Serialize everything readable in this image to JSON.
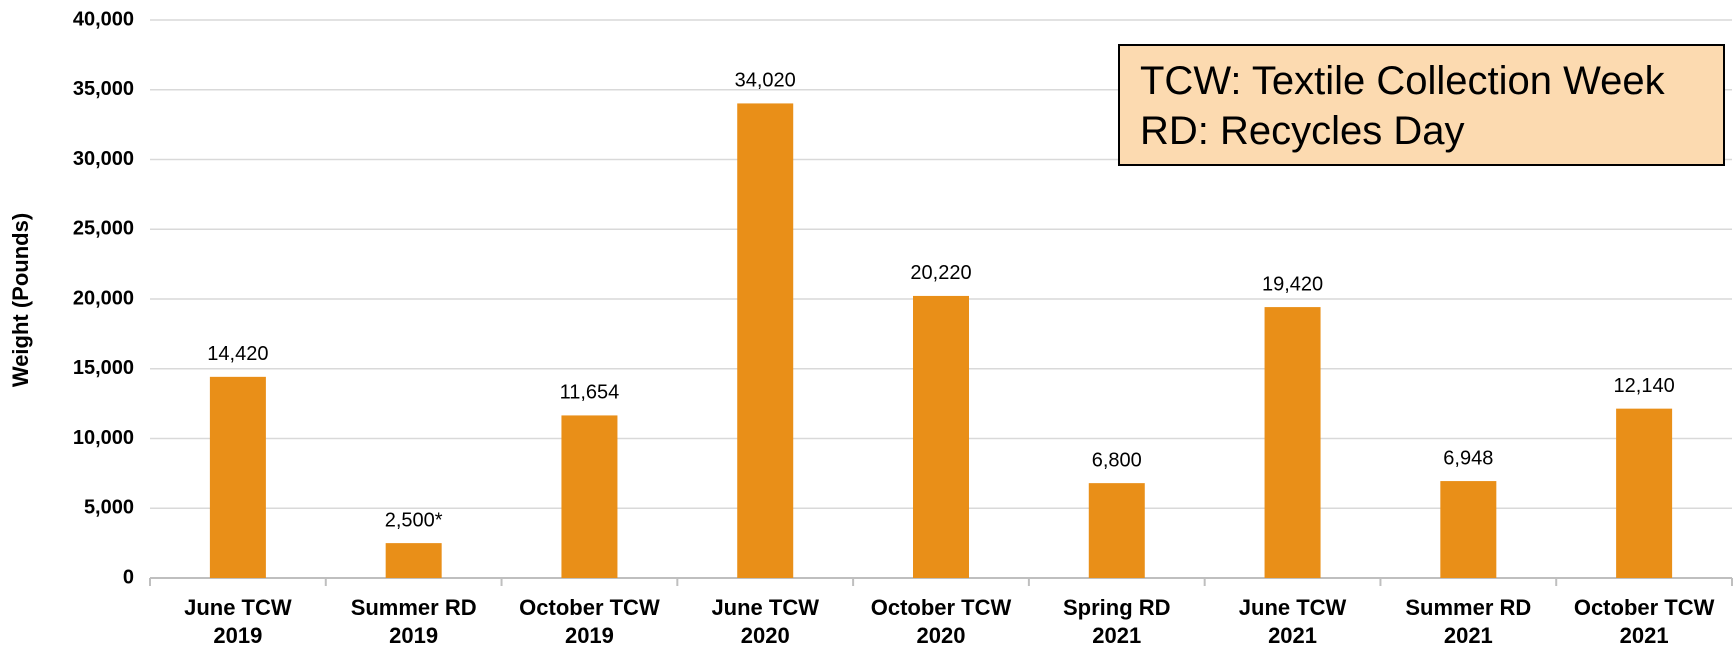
{
  "chart_data": {
    "type": "bar",
    "y_label": "Weight (Pounds)",
    "categories": [
      "June TCW\n2019",
      "Summer RD\n2019",
      "October TCW\n2019",
      "June TCW\n2020",
      "October TCW\n2020",
      "Spring RD\n2021",
      "June TCW\n2021",
      "Summer RD\n2021",
      "October TCW\n2021"
    ],
    "values": [
      14420,
      2500,
      11654,
      34020,
      20220,
      6800,
      19420,
      6948,
      12140
    ],
    "value_labels": [
      "14,420",
      "2,500*",
      "11,654",
      "34,020",
      "20,220",
      "6,800",
      "19,420",
      "6,948",
      "12,140"
    ],
    "color": "#e98f18",
    "ylim": [
      0,
      40000
    ],
    "yticks": [
      0,
      {
        "value": 5000,
        "label": "5,000"
      },
      {
        "value": 10000,
        "label": "10,000"
      },
      {
        "value": 15000,
        "label": "15,000"
      },
      {
        "value": 20000,
        "label": "20,000"
      },
      {
        "value": 25000,
        "label": "25,000"
      },
      {
        "value": 30000,
        "label": "30,000"
      },
      {
        "value": 35000,
        "label": "35,000"
      },
      {
        "value": 40000,
        "label": "40,000"
      }
    ],
    "grid": true,
    "annotations": [
      "TCW: Textile Collection Week",
      "RD: Recycles Day"
    ]
  }
}
